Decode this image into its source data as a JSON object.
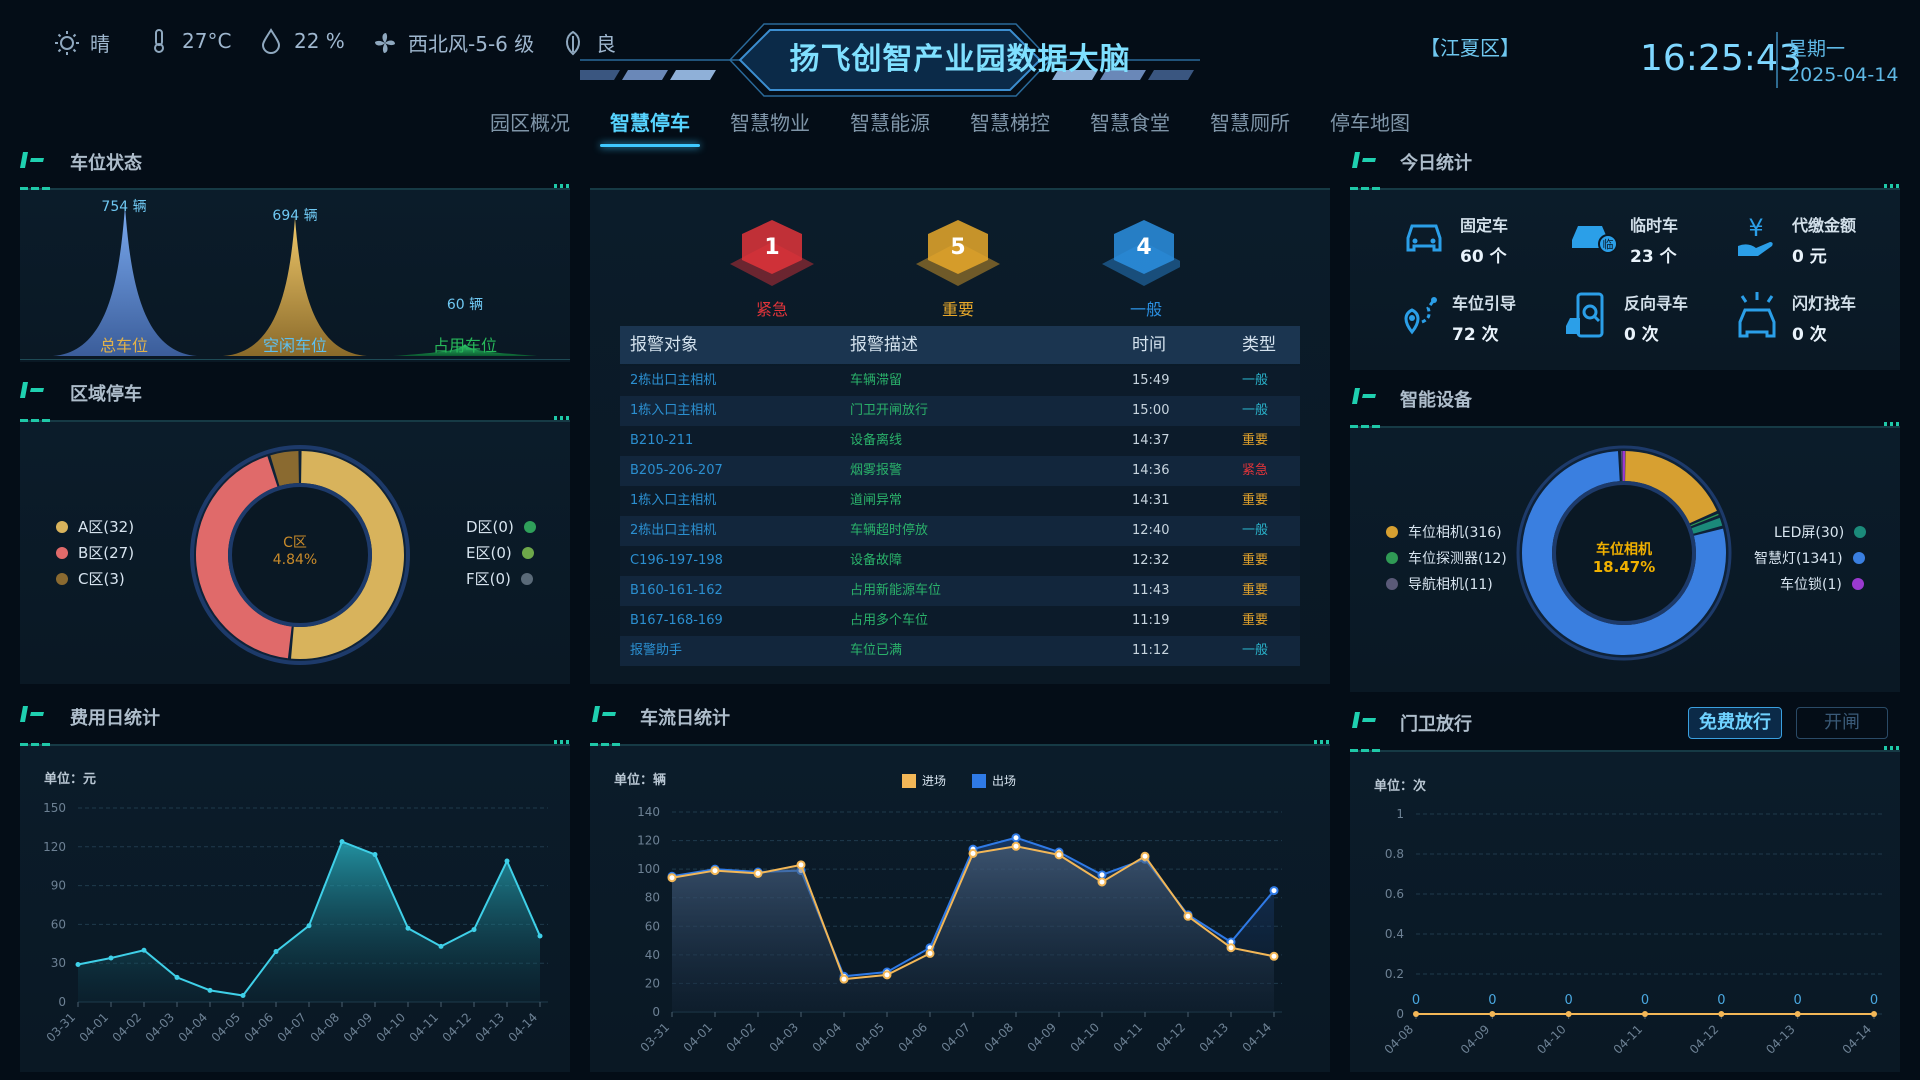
{
  "header": {
    "weather": {
      "condition": "晴",
      "temp": "27°C",
      "humidity": "22 %",
      "wind": "西北风-5-6 级",
      "air": "良"
    },
    "title": "扬飞创智产业园数据大脑",
    "region": "【江夏区】",
    "time": "16:25:43",
    "weekday": "星期一",
    "date": "2025-04-14"
  },
  "nav": [
    "园区概况",
    "智慧停车",
    "智慧物业",
    "智慧能源",
    "智慧梯控",
    "智慧食堂",
    "智慧厕所",
    "停车地图"
  ],
  "nav_active": 1,
  "parking_status": {
    "title": "车位状态",
    "items": [
      {
        "value": "754 辆",
        "label": "总车位",
        "amount": 754,
        "color": "#5f8fd6"
      },
      {
        "value": "694 辆",
        "label": "空闲车位",
        "amount": 694,
        "color": "#d3aa4e"
      },
      {
        "value": "60 辆",
        "label": "占用车位",
        "amount": 60,
        "color": "#1fae5a"
      }
    ]
  },
  "zone_parking": {
    "title": "区域停车",
    "center_label": "C区",
    "center_value": "4.84%",
    "left_legend": [
      {
        "label": "A区(32)",
        "value": 32,
        "color": "#d8b35c"
      },
      {
        "label": "B区(27)",
        "value": 27,
        "color": "#e06a6a"
      },
      {
        "label": "C区(3)",
        "value": 3,
        "color": "#8a6a30"
      }
    ],
    "right_legend": [
      {
        "label": "D区(0)",
        "value": 0,
        "color": "#2fa05a"
      },
      {
        "label": "E区(0)",
        "value": 0,
        "color": "#6ea84a"
      },
      {
        "label": "F区(0)",
        "value": 0,
        "color": "#5a6a78"
      }
    ]
  },
  "alarms": {
    "counts": [
      {
        "value": "1",
        "label": "紧急",
        "color": "#e0343a"
      },
      {
        "value": "5",
        "label": "重要",
        "color": "#e8a82a"
      },
      {
        "value": "4",
        "label": "一般",
        "color": "#2b8fe0"
      }
    ],
    "headers": [
      "报警对象",
      "报警描述",
      "时间",
      "类型"
    ],
    "rows": [
      {
        "target": "2栋出口主相机",
        "desc": "车辆滞留",
        "time": "15:49",
        "type": "一般"
      },
      {
        "target": "1栋入口主相机",
        "desc": "门卫开闸放行",
        "time": "15:00",
        "type": "一般"
      },
      {
        "target": "B210-211",
        "desc": "设备离线",
        "time": "14:37",
        "type": "重要"
      },
      {
        "target": "B205-206-207",
        "desc": "烟雾报警",
        "time": "14:36",
        "type": "紧急"
      },
      {
        "target": "1栋入口主相机",
        "desc": "道闸异常",
        "time": "14:31",
        "type": "重要"
      },
      {
        "target": "2栋出口主相机",
        "desc": "车辆超时停放",
        "time": "12:40",
        "type": "一般"
      },
      {
        "target": "C196-197-198",
        "desc": "设备故障",
        "time": "12:32",
        "type": "重要"
      },
      {
        "target": "B160-161-162",
        "desc": "占用新能源车位",
        "time": "11:43",
        "type": "重要"
      },
      {
        "target": "B167-168-169",
        "desc": "占用多个车位",
        "time": "11:19",
        "type": "重要"
      },
      {
        "target": "报警助手",
        "desc": "车位已满",
        "time": "11:12",
        "type": "一般"
      }
    ],
    "type_colors": {
      "一般": "#2ab1c9",
      "重要": "#e2a22a",
      "紧急": "#e0343a"
    }
  },
  "today_stats": {
    "title": "今日统计",
    "items": [
      {
        "label": "固定车",
        "value": "60 个",
        "icon": "car-icon"
      },
      {
        "label": "临时车",
        "value": "23 个",
        "icon": "temp-car-icon"
      },
      {
        "label": "代缴金额",
        "value": "0 元",
        "icon": "payment-icon"
      },
      {
        "label": "车位引导",
        "value": "72 次",
        "icon": "guide-icon"
      },
      {
        "label": "反向寻车",
        "value": "0 次",
        "icon": "phone-search-icon"
      },
      {
        "label": "闪灯找车",
        "value": "0 次",
        "icon": "flash-car-icon"
      }
    ]
  },
  "smart_devices": {
    "title": "智能设备",
    "center_label": "车位相机",
    "center_value": "18.47%",
    "left_legend": [
      {
        "label": "车位相机(316)",
        "value": 316,
        "color": "#d7a031"
      },
      {
        "label": "车位探测器(12)",
        "value": 12,
        "color": "#2f9a55"
      },
      {
        "label": "导航相机(11)",
        "value": 11,
        "color": "#5a5a78"
      }
    ],
    "right_legend": [
      {
        "label": "LED屏(30)",
        "value": 30,
        "color": "#1b8a7a"
      },
      {
        "label": "智慧灯(1341)",
        "value": 1341,
        "color": "#3a7fe0"
      },
      {
        "label": "车位锁(1)",
        "value": 1,
        "color": "#9a3ad0"
      }
    ]
  },
  "fee_chart": {
    "title": "费用日统计",
    "unit": "单位：元",
    "chart_data": {
      "type": "area",
      "x": [
        "03-31",
        "04-01",
        "04-02",
        "04-03",
        "04-04",
        "04-05",
        "04-06",
        "04-07",
        "04-08",
        "04-09",
        "04-10",
        "04-11",
        "04-12",
        "04-13",
        "04-14"
      ],
      "values": [
        29,
        34,
        40,
        19,
        9,
        5,
        39,
        59,
        124,
        114,
        57,
        43,
        56,
        109,
        51
      ],
      "y_ticks": [
        0,
        30,
        60,
        90,
        120,
        150
      ],
      "ylim": [
        0,
        150
      ]
    }
  },
  "flow_chart": {
    "title": "车流日统计",
    "unit": "单位：辆",
    "chart_data": {
      "type": "line",
      "x": [
        "03-31",
        "04-01",
        "04-02",
        "04-03",
        "04-04",
        "04-05",
        "04-06",
        "04-07",
        "04-08",
        "04-09",
        "04-10",
        "04-11",
        "04-12",
        "04-13",
        "04-14"
      ],
      "series": [
        {
          "name": "进场",
          "color": "#f3b757",
          "values": [
            94,
            99,
            97,
            103,
            23,
            26,
            41,
            111,
            116,
            110,
            91,
            109,
            67,
            45,
            39
          ]
        },
        {
          "name": "出场",
          "color": "#2f7ae6",
          "values": [
            95,
            100,
            98,
            99,
            25,
            28,
            45,
            114,
            122,
            112,
            96,
            107,
            68,
            49,
            85
          ]
        }
      ],
      "y_ticks": [
        0,
        20,
        40,
        60,
        80,
        100,
        120,
        140
      ],
      "ylim": [
        0,
        140
      ]
    }
  },
  "gate_chart": {
    "title": "门卫放行",
    "buttons": [
      "免费放行",
      "开闸"
    ],
    "unit": "单位：次",
    "chart_data": {
      "type": "line",
      "x": [
        "04-08",
        "04-09",
        "04-10",
        "04-11",
        "04-12",
        "04-13",
        "04-14"
      ],
      "values": [
        0,
        0,
        0,
        0,
        0,
        0,
        0
      ],
      "y_ticks": [
        0,
        0.2,
        0.4,
        0.6,
        0.8,
        1
      ],
      "ylim": [
        0,
        1
      ]
    }
  }
}
